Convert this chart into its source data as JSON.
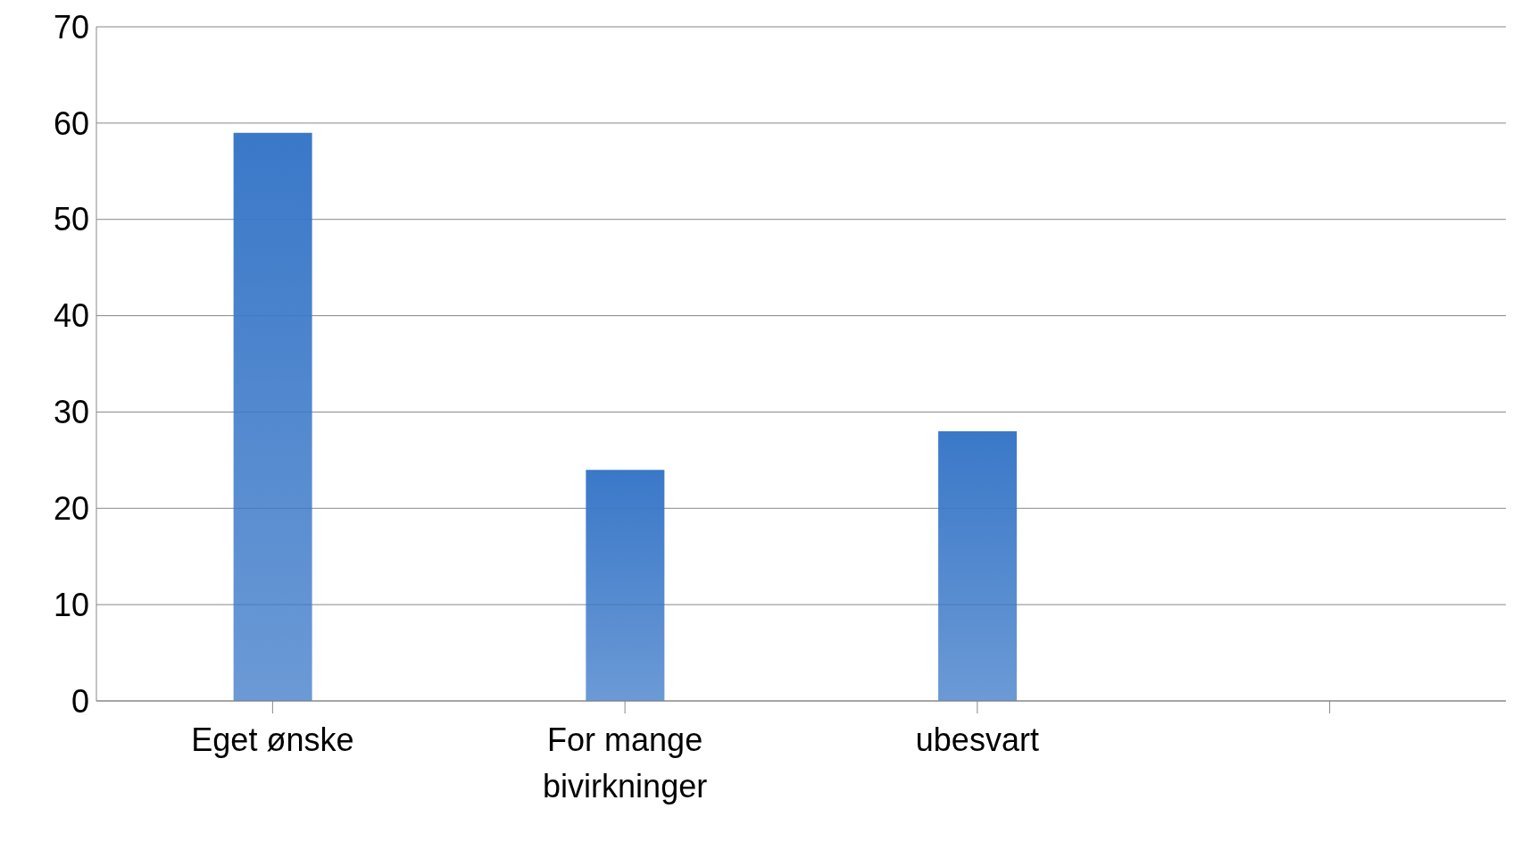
{
  "chart_data": {
    "type": "bar",
    "categories": [
      "Eget ønske",
      "For mange bivirkninger",
      "ubesvart",
      null
    ],
    "values": [
      59,
      24,
      28,
      null
    ],
    "color": "#3a78c8",
    "ylim": [
      0,
      70
    ],
    "yticks": [
      0,
      10,
      20,
      30,
      40,
      50,
      60,
      70
    ],
    "grid": "y"
  }
}
